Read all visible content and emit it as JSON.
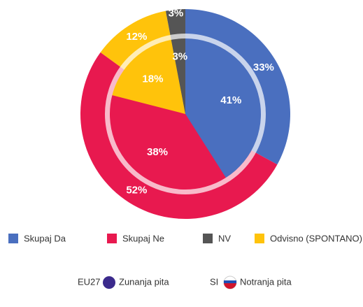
{
  "chart_data": {
    "type": "pie",
    "categories": [
      "Skupaj Da",
      "Skupaj Ne",
      "Odvisno (SPONTANO)",
      "NV"
    ],
    "colors": [
      "#4a6fbf",
      "#e8194f",
      "#ffc30b",
      "#555555"
    ],
    "series": [
      {
        "name": "EU27",
        "label": "Zunanja pita",
        "values": [
          33,
          52,
          12,
          3
        ],
        "value_labels": [
          "33%",
          "52%",
          "12%",
          "3%"
        ]
      },
      {
        "name": "SI",
        "label": "Notranja pita",
        "values": [
          41,
          38,
          18,
          3
        ],
        "value_labels": [
          "41%",
          "38%",
          "18%",
          "3%"
        ]
      }
    ]
  }
}
